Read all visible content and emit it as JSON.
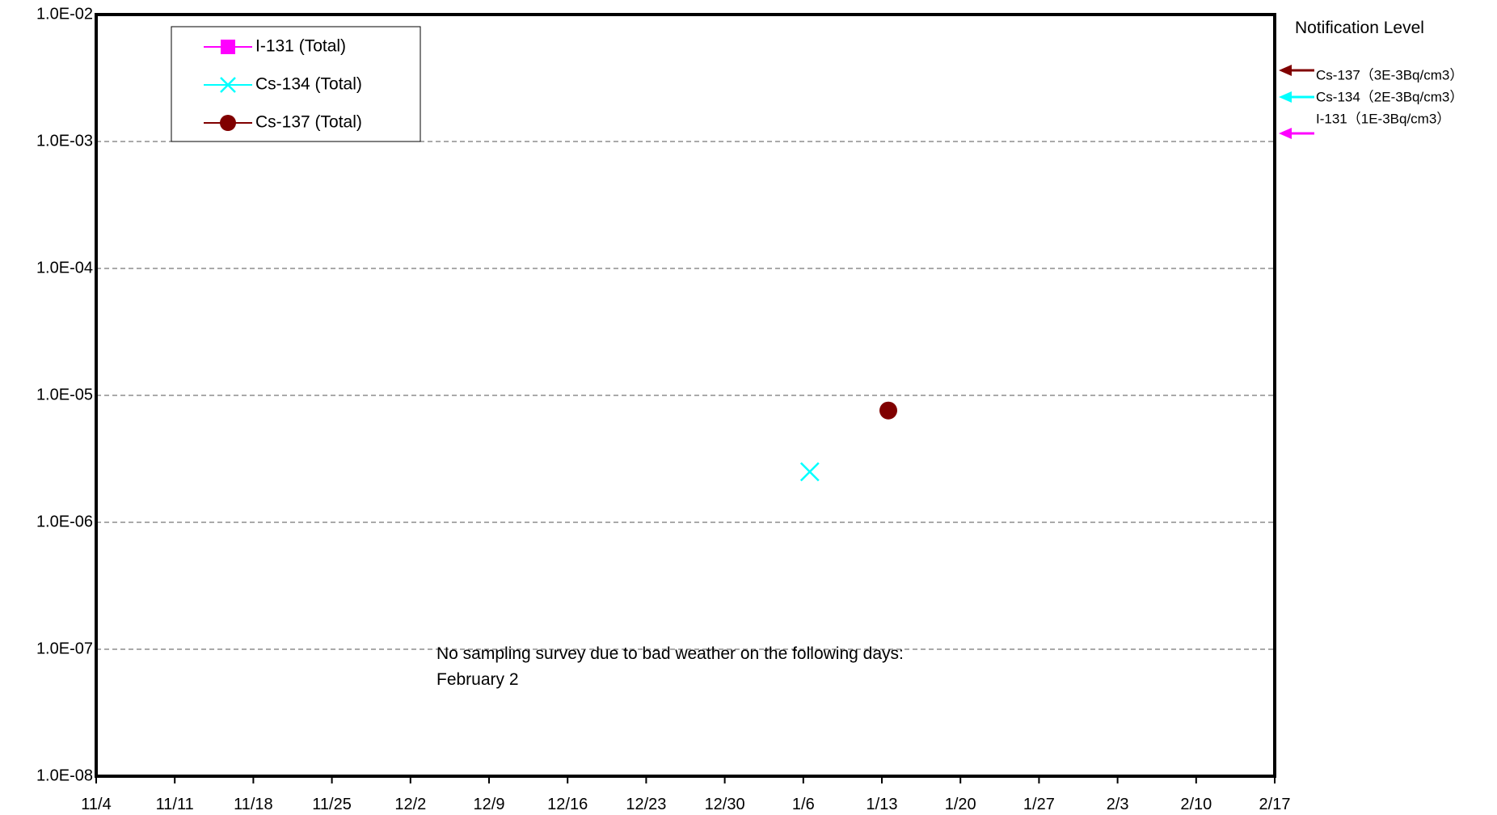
{
  "chart_data": {
    "type": "scatter",
    "y_scale": "log",
    "ylim": [
      1e-08,
      0.01
    ],
    "y_ticks": [
      "1.0E-08",
      "1.0E-07",
      "1.0E-06",
      "1.0E-05",
      "1.0E-04",
      "1.0E-03",
      "1.0E-02"
    ],
    "x_ticks": [
      "11/4",
      "11/11",
      "11/18",
      "11/25",
      "12/2",
      "12/9",
      "12/16",
      "12/23",
      "12/30",
      "1/6",
      "1/13",
      "1/20",
      "1/27",
      "2/3",
      "2/10",
      "2/17"
    ],
    "grid": "horizontal-dashed",
    "legend": "top-left",
    "series": [
      {
        "name": "I-131 (Total)",
        "marker": "square",
        "color": "#ff00ff",
        "points": []
      },
      {
        "name": "Cs-134 (Total)",
        "marker": "x",
        "color": "#00ffff",
        "points": [
          {
            "x": "1/6",
            "y": 2.5e-06
          }
        ]
      },
      {
        "name": "Cs-137 (Total)",
        "marker": "circle",
        "color": "#800000",
        "points": [
          {
            "x": "1/13",
            "y": 7.6e-06
          }
        ]
      }
    ],
    "annotation": {
      "line1": "No sampling survey due to bad weather on the following days:",
      "line2": "February 2"
    },
    "notification": {
      "title": "Notification Level",
      "levels": [
        {
          "label": "Cs-137（3E-3Bq/cm3）",
          "value": 0.003,
          "color": "#800000"
        },
        {
          "label": "Cs-134（2E-3Bq/cm3）",
          "value": 0.002,
          "color": "#00ffff"
        },
        {
          "label": "I-131（1E-3Bq/cm3）",
          "value": 0.001,
          "color": "#ff00ff"
        }
      ]
    }
  }
}
